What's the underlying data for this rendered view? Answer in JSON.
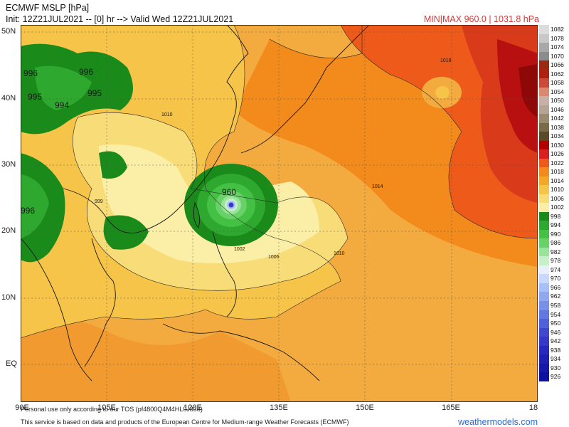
{
  "header": {
    "title": "ECMWF MSLP [hPa]",
    "init": "Init: 12Z21JUL2021 -- [0] hr --> Valid Wed 12Z21JUL2021",
    "minmax": "MIN|MAX 960.0 | 1031.8 hPa"
  },
  "axes": {
    "lat": [
      "50N",
      "40N",
      "30N",
      "20N",
      "10N",
      "EQ"
    ],
    "lon": [
      "90E",
      "105E",
      "120E",
      "135E",
      "150E",
      "165E",
      "18"
    ]
  },
  "contour_labels": {
    "center": "960",
    "l995a": "995",
    "l995b": "995",
    "l994": "994",
    "l996a": "996",
    "l996b": "996",
    "l996c": "996",
    "l1010a": "1010",
    "l1010b": "1010",
    "l1006": "1006",
    "l1002": "1002",
    "l1014": "1014",
    "l1018": "1018",
    "l999": "999"
  },
  "colorbar": {
    "levels": [
      "1082",
      "1078",
      "1074",
      "1070",
      "1066",
      "1062",
      "1058",
      "1054",
      "1050",
      "1046",
      "1042",
      "1038",
      "1034",
      "1030",
      "1026",
      "1022",
      "1018",
      "1014",
      "1010",
      "1006",
      "1002",
      "998",
      "994",
      "990",
      "986",
      "982",
      "978",
      "974",
      "970",
      "966",
      "962",
      "958",
      "954",
      "950",
      "946",
      "942",
      "938",
      "934",
      "930",
      "926"
    ],
    "colors": [
      "#dcdcdc",
      "#c8c8c8",
      "#a8a8a8",
      "#8c8c8c",
      "#9a2a10",
      "#b02010",
      "#cc4a3a",
      "#d88a70",
      "#c8b0a8",
      "#b4a494",
      "#9a8a70",
      "#7a6a48",
      "#5a4a28",
      "#b00000",
      "#d82020",
      "#ee5a1a",
      "#f28a1c",
      "#f4a628",
      "#f6c448",
      "#f8dc78",
      "#fbefa8",
      "#1a8a1a",
      "#2ea82e",
      "#44c044",
      "#68d268",
      "#98e498",
      "#c8f0c8",
      "#e8f0ff",
      "#c8d8ff",
      "#a8c0f8",
      "#90a8f0",
      "#7890e8",
      "#6078e0",
      "#5060d8",
      "#4048d0",
      "#3838c8",
      "#2828c0",
      "#2020b0",
      "#1818a8",
      "#1010a0"
    ]
  },
  "footer": {
    "line1": "Personal use only according to our TOS (pf4800Q4M4HL0J838)",
    "line2": "This service is based on data and products of the European Centre for Medium-range Weather Forecasts (ECMWF)",
    "brand": "weathermodels.com"
  },
  "colors": {
    "ocean_base": "#f3ab3f",
    "high": "#ee5a1a",
    "core": "#b00000",
    "low_green": "#1a8a1a",
    "light": "#fbefa8"
  }
}
